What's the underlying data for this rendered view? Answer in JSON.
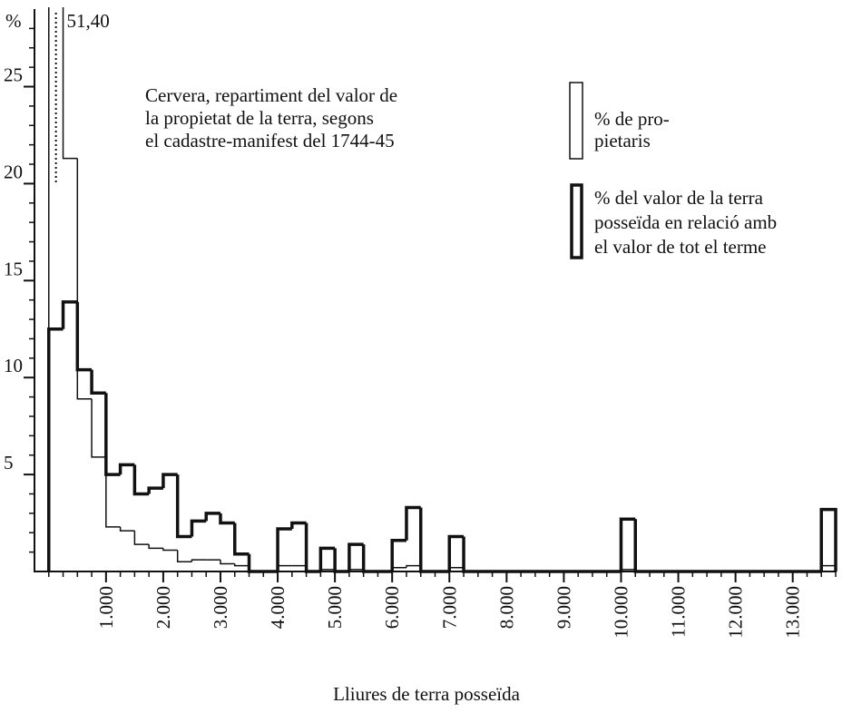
{
  "chart_data": {
    "type": "histogram",
    "title": "Cervera, repartiment del valor de\nla propietat de la terra, segons\nel cadastre-manifest del 1744-45",
    "xlabel": "Lliures de terra posseïda",
    "ylabel": "%",
    "bins": [
      0,
      250,
      500,
      750,
      1000,
      1250,
      1500,
      1750,
      2000,
      2250,
      2500,
      2750,
      3000,
      3250,
      3500,
      3750,
      4000,
      4250,
      4500,
      4750,
      5000,
      5250,
      5500,
      5750,
      6000,
      6250,
      6500,
      6750,
      7000,
      7250,
      7500,
      7750,
      8000,
      8250,
      8500,
      8750,
      9000,
      9250,
      9500,
      9750,
      10000,
      10250,
      10500,
      10750,
      11000,
      11250,
      11500,
      11750,
      12000,
      12250,
      12500,
      12750,
      13000,
      13250,
      13500,
      13750
    ],
    "series": [
      {
        "name": "% de pro-\npietaris",
        "color": "#111111",
        "values": [
          51.4,
          21.3,
          8.9,
          5.9,
          2.3,
          2.1,
          1.4,
          1.2,
          1.1,
          0.5,
          0.6,
          0.6,
          0.4,
          0.3,
          0,
          0,
          0.3,
          0.3,
          0,
          0.1,
          0,
          0.1,
          0,
          0,
          0.2,
          0.3,
          0,
          0,
          0.2,
          0,
          0,
          0,
          0,
          0,
          0,
          0,
          0,
          0,
          0,
          0,
          0.1,
          0,
          0,
          0,
          0,
          0,
          0,
          0,
          0,
          0,
          0,
          0,
          0,
          0,
          0.3
        ],
        "value_labels": [
          "51,40",
          null,
          null,
          null,
          null,
          null,
          null,
          null,
          null,
          null,
          null,
          null,
          null,
          null,
          null,
          null,
          null,
          null,
          null,
          null,
          null,
          null,
          null,
          null,
          null,
          null,
          null,
          null,
          null,
          null,
          null,
          null,
          null,
          null,
          null,
          null,
          null,
          null,
          null,
          null,
          null,
          null,
          null,
          null,
          null,
          null,
          null,
          null,
          null,
          null,
          null,
          null,
          null,
          null,
          null
        ]
      },
      {
        "name": "% del valor de la terra\nposseïda en relació amb\nel valor de tot el terme",
        "color": "#111111",
        "values": [
          12.5,
          13.9,
          10.4,
          9.2,
          5.0,
          5.5,
          4.0,
          4.3,
          5.0,
          1.8,
          2.6,
          3.0,
          2.5,
          0.9,
          0,
          0,
          2.2,
          2.5,
          0,
          1.2,
          0,
          1.4,
          0,
          0,
          1.6,
          3.3,
          0,
          0,
          1.8,
          0,
          0,
          0,
          0,
          0,
          0,
          0,
          0,
          0,
          0,
          0,
          2.7,
          0,
          0,
          0,
          0,
          0,
          0,
          0,
          0,
          0,
          0,
          0,
          0,
          0,
          3.2
        ]
      }
    ],
    "xlim": [
      -250,
      13750
    ],
    "ylim": [
      0,
      29
    ],
    "xticks": [
      {
        "value": 1000,
        "label": "1.000"
      },
      {
        "value": 2000,
        "label": "2.000"
      },
      {
        "value": 3000,
        "label": "3.000"
      },
      {
        "value": 4000,
        "label": "4.000"
      },
      {
        "value": 5000,
        "label": "5.000"
      },
      {
        "value": 6000,
        "label": "6.000"
      },
      {
        "value": 7000,
        "label": "7.000"
      },
      {
        "value": 8000,
        "label": "8.000"
      },
      {
        "value": 9000,
        "label": "9.000"
      },
      {
        "value": 10000,
        "label": "10.000"
      },
      {
        "value": 11000,
        "label": "11.000"
      },
      {
        "value": 12000,
        "label": "12.000"
      },
      {
        "value": 13000,
        "label": "13.000"
      }
    ],
    "yticks": [
      5,
      10,
      15,
      20,
      25
    ],
    "yminorticks": [
      1,
      2,
      3,
      4,
      6,
      7,
      8,
      9,
      11,
      12,
      13,
      14,
      16,
      17,
      18,
      19,
      21,
      22,
      23,
      24,
      26,
      27,
      28
    ],
    "grid": false
  }
}
